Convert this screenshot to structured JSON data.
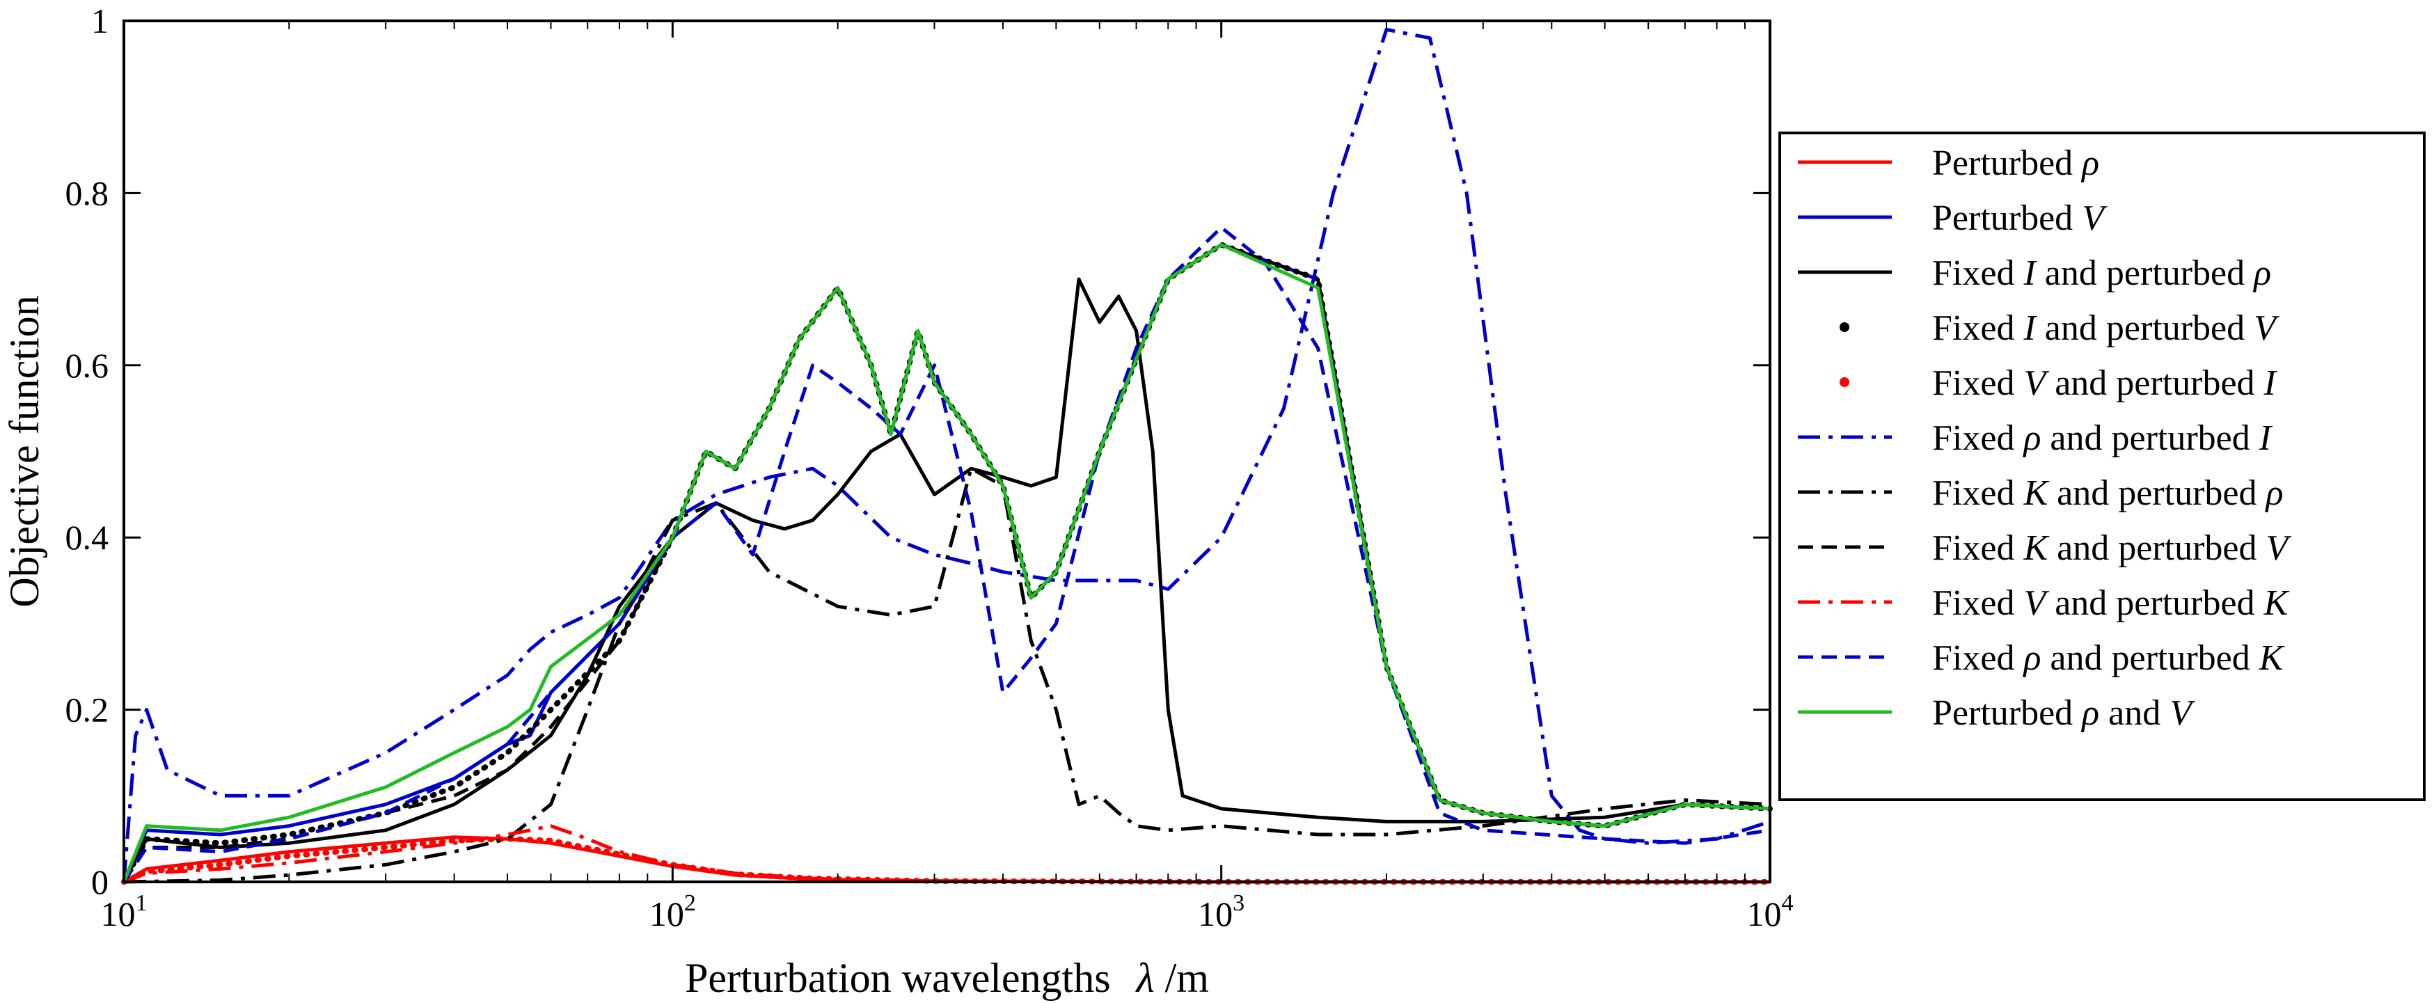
{
  "chart_data": {
    "type": "line",
    "xscale": "log",
    "xlim": [
      10,
      10000
    ],
    "ylim": [
      0,
      1
    ],
    "xlabel": "Perturbation wavelengths",
    "xlabel_symbol": "λ",
    "xlabel_unit": "/m",
    "ylabel": "Objective function",
    "x_ticks": [
      {
        "value": 10,
        "base": "10",
        "exp": "1"
      },
      {
        "value": 100,
        "base": "10",
        "exp": "2"
      },
      {
        "value": 1000,
        "base": "10",
        "exp": "3"
      },
      {
        "value": 10000,
        "base": "10",
        "exp": "4"
      }
    ],
    "y_ticks": [
      {
        "value": 0,
        "label": "0"
      },
      {
        "value": 0.2,
        "label": "0.2"
      },
      {
        "value": 0.4,
        "label": "0.4"
      },
      {
        "value": 0.6,
        "label": "0.6"
      },
      {
        "value": 0.8,
        "label": "0.8"
      },
      {
        "value": 1,
        "label": "1"
      }
    ],
    "legend_position": "right, outside plot",
    "series": [
      {
        "id": "s1",
        "label_parts": [
          {
            "t": "Perturbed "
          },
          {
            "t": "ρ",
            "i": true
          }
        ],
        "color": "#ff0000",
        "style": "solid",
        "x": [
          10,
          11,
          15,
          20,
          30,
          40,
          50,
          60,
          80,
          100,
          130,
          180,
          300,
          1000,
          10000
        ],
        "y": [
          0,
          0.015,
          0.025,
          0.035,
          0.045,
          0.052,
          0.05,
          0.045,
          0.03,
          0.018,
          0.008,
          0.003,
          0.001,
          0,
          0
        ]
      },
      {
        "id": "s2",
        "label_parts": [
          {
            "t": "Perturbed "
          },
          {
            "t": "V",
            "i": true
          }
        ],
        "color": "#0000cc",
        "style": "solid",
        "x": [
          10,
          11,
          15,
          20,
          30,
          40,
          50,
          55,
          60,
          80,
          100,
          115,
          130,
          150,
          170,
          200,
          230,
          250,
          280,
          300,
          350,
          400,
          450,
          500,
          600,
          800,
          1000,
          1500,
          2000,
          2500,
          3000,
          4000,
          5000,
          7000,
          10000
        ],
        "y": [
          0,
          0.06,
          0.055,
          0.065,
          0.09,
          0.12,
          0.16,
          0.17,
          0.22,
          0.3,
          0.4,
          0.5,
          0.48,
          0.55,
          0.63,
          0.69,
          0.6,
          0.52,
          0.64,
          0.58,
          0.52,
          0.46,
          0.33,
          0.36,
          0.5,
          0.7,
          0.74,
          0.7,
          0.25,
          0.095,
          0.08,
          0.07,
          0.065,
          0.09,
          0.085
        ]
      },
      {
        "id": "s3",
        "label_parts": [
          {
            "t": "Fixed "
          },
          {
            "t": "I",
            "i": true
          },
          {
            "t": " and perturbed "
          },
          {
            "t": "ρ",
            "i": true
          }
        ],
        "color": "#000000",
        "style": "solid",
        "x": [
          10,
          11,
          15,
          20,
          30,
          40,
          50,
          60,
          70,
          80,
          100,
          120,
          140,
          160,
          180,
          200,
          230,
          260,
          300,
          350,
          400,
          450,
          500,
          550,
          600,
          650,
          700,
          750,
          800,
          850,
          1000,
          1500,
          2000,
          3000,
          5000,
          7000,
          10000
        ],
        "y": [
          0,
          0.05,
          0.04,
          0.045,
          0.06,
          0.09,
          0.13,
          0.17,
          0.24,
          0.32,
          0.4,
          0.44,
          0.42,
          0.41,
          0.42,
          0.45,
          0.5,
          0.52,
          0.45,
          0.48,
          0.47,
          0.46,
          0.47,
          0.7,
          0.65,
          0.68,
          0.64,
          0.5,
          0.2,
          0.1,
          0.085,
          0.075,
          0.07,
          0.07,
          0.075,
          0.09,
          0.085
        ]
      },
      {
        "id": "s4",
        "label_parts": [
          {
            "t": "Fixed "
          },
          {
            "t": "I",
            "i": true
          },
          {
            "t": " and perturbed "
          },
          {
            "t": "V",
            "i": true
          }
        ],
        "color": "#000000",
        "style": "dotted",
        "x": [
          10,
          11,
          15,
          20,
          30,
          40,
          50,
          60,
          80,
          100,
          115,
          130,
          150,
          170,
          200,
          230,
          250,
          280,
          300,
          350,
          400,
          450,
          500,
          600,
          800,
          1000,
          1500,
          2000,
          2500,
          3000,
          4000,
          5000,
          7000,
          10000
        ],
        "y": [
          0,
          0.05,
          0.045,
          0.055,
          0.08,
          0.11,
          0.15,
          0.2,
          0.28,
          0.4,
          0.5,
          0.48,
          0.55,
          0.63,
          0.69,
          0.6,
          0.52,
          0.64,
          0.58,
          0.52,
          0.46,
          0.33,
          0.36,
          0.5,
          0.7,
          0.74,
          0.7,
          0.25,
          0.095,
          0.08,
          0.07,
          0.065,
          0.09,
          0.085
        ]
      },
      {
        "id": "s5",
        "label_parts": [
          {
            "t": "Fixed "
          },
          {
            "t": "V",
            "i": true
          },
          {
            "t": " and perturbed "
          },
          {
            "t": "I",
            "i": true
          }
        ],
        "color": "#ff0000",
        "style": "dotted",
        "x": [
          10,
          11,
          15,
          20,
          30,
          40,
          50,
          60,
          80,
          100,
          130,
          180,
          300,
          1000,
          10000
        ],
        "y": [
          0,
          0.012,
          0.02,
          0.03,
          0.04,
          0.048,
          0.05,
          0.048,
          0.032,
          0.02,
          0.009,
          0.004,
          0.001,
          0,
          0
        ]
      },
      {
        "id": "s6",
        "label_parts": [
          {
            "t": "Fixed "
          },
          {
            "t": "ρ",
            "i": true
          },
          {
            "t": " and perturbed "
          },
          {
            "t": "I",
            "i": true
          }
        ],
        "color": "#0000cc",
        "style": "dashdot",
        "x": [
          10,
          10.5,
          11,
          12,
          15,
          20,
          30,
          40,
          50,
          55,
          60,
          70,
          80,
          100,
          120,
          150,
          180,
          200,
          250,
          300,
          350,
          400,
          500,
          700,
          800,
          1000,
          1300,
          1600,
          2000,
          2400,
          2800,
          3300,
          4000,
          4500,
          5000,
          6000,
          8000,
          10000
        ],
        "y": [
          0,
          0.17,
          0.2,
          0.13,
          0.1,
          0.1,
          0.15,
          0.2,
          0.24,
          0.27,
          0.29,
          0.31,
          0.33,
          0.42,
          0.45,
          0.47,
          0.48,
          0.46,
          0.4,
          0.38,
          0.37,
          0.36,
          0.35,
          0.35,
          0.34,
          0.4,
          0.55,
          0.8,
          0.99,
          0.98,
          0.8,
          0.45,
          0.1,
          0.06,
          0.05,
          0.045,
          0.05,
          0.07
        ]
      },
      {
        "id": "s7",
        "label_parts": [
          {
            "t": "Fixed "
          },
          {
            "t": "K",
            "i": true
          },
          {
            "t": " and perturbed "
          },
          {
            "t": "ρ",
            "i": true
          }
        ],
        "color": "#000000",
        "style": "dashdot",
        "x": [
          10,
          15,
          20,
          30,
          40,
          50,
          60,
          70,
          80,
          100,
          120,
          150,
          200,
          250,
          300,
          350,
          400,
          450,
          500,
          550,
          600,
          650,
          700,
          800,
          1000,
          1500,
          2000,
          3000,
          5000,
          7000,
          10000
        ],
        "y": [
          0,
          0.002,
          0.008,
          0.02,
          0.035,
          0.05,
          0.09,
          0.2,
          0.3,
          0.42,
          0.44,
          0.36,
          0.32,
          0.31,
          0.32,
          0.48,
          0.46,
          0.28,
          0.2,
          0.09,
          0.1,
          0.08,
          0.065,
          0.06,
          0.065,
          0.055,
          0.055,
          0.065,
          0.085,
          0.095,
          0.09
        ]
      },
      {
        "id": "s8",
        "label_parts": [
          {
            "t": "Fixed  "
          },
          {
            "t": "K",
            "i": true
          },
          {
            "t": " and perturbed "
          },
          {
            "t": "V",
            "i": true
          }
        ],
        "color": "#000000",
        "style": "dashed",
        "x": [
          10,
          11,
          15,
          20,
          30,
          40,
          50,
          60,
          80,
          100,
          115,
          130,
          150,
          170,
          200,
          230,
          250,
          280,
          300,
          350,
          400,
          450,
          500,
          600,
          800,
          1000,
          1500,
          2000,
          2500,
          3000,
          4000,
          5000,
          7000,
          10000
        ],
        "y": [
          0,
          0.04,
          0.04,
          0.05,
          0.08,
          0.1,
          0.13,
          0.18,
          0.28,
          0.4,
          0.5,
          0.48,
          0.55,
          0.63,
          0.69,
          0.6,
          0.52,
          0.64,
          0.58,
          0.52,
          0.46,
          0.33,
          0.36,
          0.5,
          0.7,
          0.74,
          0.7,
          0.25,
          0.095,
          0.08,
          0.07,
          0.065,
          0.09,
          0.085
        ]
      },
      {
        "id": "s9",
        "label_parts": [
          {
            "t": "Fixed "
          },
          {
            "t": "V",
            "i": true
          },
          {
            "t": " and perturbed "
          },
          {
            "t": "K",
            "i": true
          }
        ],
        "color": "#ff0000",
        "style": "dashdot",
        "x": [
          10,
          11,
          15,
          20,
          30,
          40,
          50,
          55,
          60,
          70,
          80,
          100,
          130,
          180,
          300,
          1000,
          10000
        ],
        "y": [
          0,
          0.01,
          0.015,
          0.022,
          0.035,
          0.045,
          0.055,
          0.06,
          0.065,
          0.05,
          0.035,
          0.02,
          0.01,
          0.004,
          0.001,
          0,
          0
        ]
      },
      {
        "id": "s10",
        "label_parts": [
          {
            "t": "Fixed "
          },
          {
            "t": "ρ",
            "i": true
          },
          {
            "t": " and perturbed "
          },
          {
            "t": "K",
            "i": true
          }
        ],
        "color": "#0000cc",
        "style": "dashed",
        "x": [
          10,
          11,
          15,
          20,
          30,
          40,
          50,
          60,
          80,
          100,
          120,
          140,
          160,
          180,
          200,
          230,
          260,
          300,
          350,
          400,
          450,
          500,
          600,
          700,
          800,
          1000,
          1200,
          1500,
          2000,
          2500,
          3000,
          5000,
          7000,
          10000
        ],
        "y": [
          0,
          0.04,
          0.035,
          0.05,
          0.08,
          0.12,
          0.16,
          0.22,
          0.3,
          0.4,
          0.44,
          0.38,
          0.5,
          0.6,
          0.58,
          0.55,
          0.52,
          0.6,
          0.43,
          0.22,
          0.26,
          0.3,
          0.5,
          0.62,
          0.7,
          0.76,
          0.72,
          0.62,
          0.25,
          0.08,
          0.06,
          0.05,
          0.045,
          0.06
        ]
      },
      {
        "id": "s11",
        "label_parts": [
          {
            "t": "Perturbed "
          },
          {
            "t": "ρ",
            "i": true
          },
          {
            "t": " and "
          },
          {
            "t": "V",
            "i": true
          }
        ],
        "color": "#22bb22",
        "style": "solid",
        "x": [
          10,
          11,
          15,
          20,
          30,
          40,
          50,
          55,
          60,
          80,
          100,
          115,
          130,
          150,
          170,
          200,
          230,
          250,
          280,
          300,
          350,
          400,
          450,
          500,
          600,
          800,
          1000,
          1500,
          2000,
          2500,
          3000,
          4000,
          5000,
          7000,
          10000
        ],
        "y": [
          0,
          0.065,
          0.06,
          0.075,
          0.11,
          0.15,
          0.18,
          0.2,
          0.25,
          0.31,
          0.4,
          0.5,
          0.48,
          0.55,
          0.63,
          0.69,
          0.6,
          0.52,
          0.64,
          0.58,
          0.52,
          0.46,
          0.33,
          0.36,
          0.5,
          0.7,
          0.74,
          0.69,
          0.25,
          0.095,
          0.08,
          0.07,
          0.065,
          0.09,
          0.085
        ]
      }
    ]
  }
}
